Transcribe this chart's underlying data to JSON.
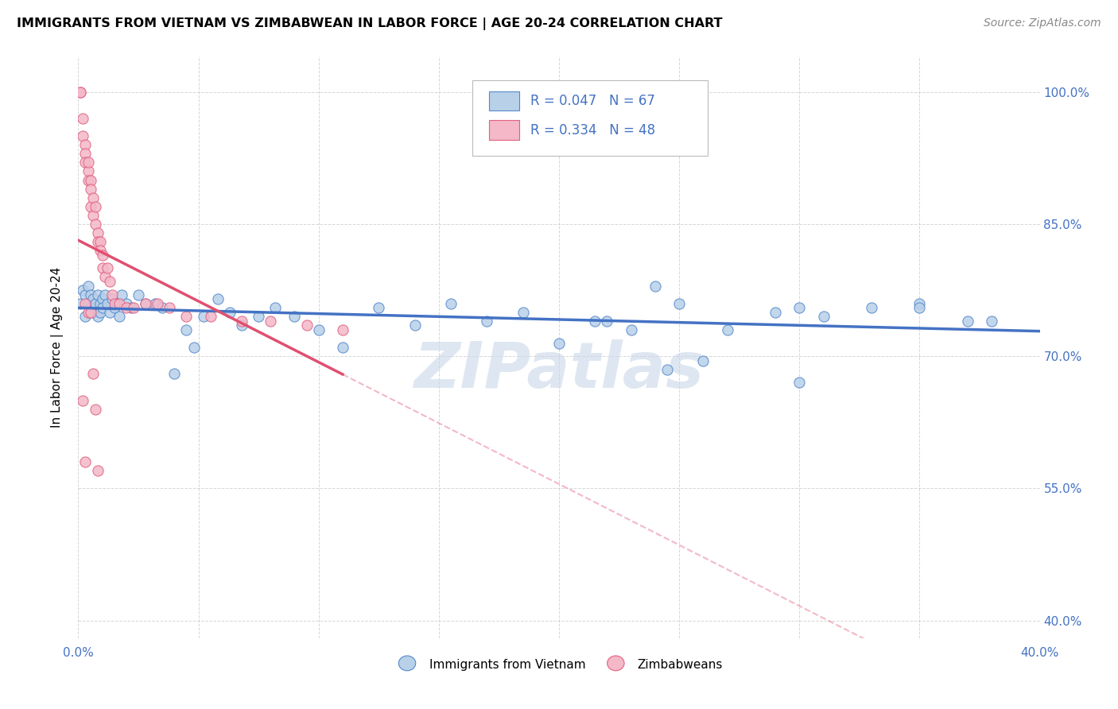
{
  "title": "IMMIGRANTS FROM VIETNAM VS ZIMBABWEAN IN LABOR FORCE | AGE 20-24 CORRELATION CHART",
  "source": "Source: ZipAtlas.com",
  "ylabel": "In Labor Force | Age 20-24",
  "xlim": [
    0.0,
    0.4
  ],
  "ylim": [
    0.38,
    1.04
  ],
  "xtick_positions": [
    0.0,
    0.05,
    0.1,
    0.15,
    0.2,
    0.25,
    0.3,
    0.35,
    0.4
  ],
  "ytick_positions": [
    0.4,
    0.55,
    0.7,
    0.85,
    1.0
  ],
  "ytick_labels": [
    "40.0%",
    "55.0%",
    "70.0%",
    "85.0%",
    "100.0%"
  ],
  "color_vietnam_fill": "#b8d0e8",
  "color_vietnam_edge": "#5588cc",
  "color_zimbabwe_fill": "#f4b8c8",
  "color_zimbabwe_edge": "#e06080",
  "color_trend_vietnam": "#4472c4",
  "color_trend_zimbabwe": "#e05070",
  "color_text_blue": "#4472c4",
  "color_grid": "#cccccc",
  "background_color": "#ffffff",
  "watermark": "ZIPatlas",
  "legend_vietnam_label": "Immigrants from Vietnam",
  "legend_zimbabwe_label": "Zimbabweans",
  "vietnam_x": [
    0.001,
    0.002,
    0.003,
    0.003,
    0.004,
    0.004,
    0.005,
    0.005,
    0.006,
    0.006,
    0.007,
    0.007,
    0.008,
    0.008,
    0.009,
    0.009,
    0.01,
    0.01,
    0.011,
    0.012,
    0.013,
    0.014,
    0.015,
    0.016,
    0.017,
    0.018,
    0.02,
    0.022,
    0.025,
    0.028,
    0.032,
    0.035,
    0.04,
    0.045,
    0.048,
    0.052,
    0.058,
    0.063,
    0.068,
    0.075,
    0.082,
    0.09,
    0.1,
    0.11,
    0.125,
    0.14,
    0.155,
    0.17,
    0.185,
    0.2,
    0.215,
    0.23,
    0.25,
    0.27,
    0.29,
    0.31,
    0.33,
    0.35,
    0.37,
    0.22,
    0.245,
    0.3,
    0.38,
    0.24,
    0.35,
    0.3,
    0.26
  ],
  "vietnam_y": [
    0.76,
    0.775,
    0.77,
    0.745,
    0.76,
    0.78,
    0.755,
    0.77,
    0.75,
    0.765,
    0.755,
    0.76,
    0.745,
    0.77,
    0.76,
    0.75,
    0.765,
    0.755,
    0.77,
    0.76,
    0.75,
    0.765,
    0.755,
    0.76,
    0.745,
    0.77,
    0.76,
    0.755,
    0.77,
    0.76,
    0.76,
    0.755,
    0.68,
    0.73,
    0.71,
    0.745,
    0.765,
    0.75,
    0.735,
    0.745,
    0.755,
    0.745,
    0.73,
    0.71,
    0.755,
    0.735,
    0.76,
    0.74,
    0.75,
    0.715,
    0.74,
    0.73,
    0.76,
    0.73,
    0.75,
    0.745,
    0.755,
    0.76,
    0.74,
    0.74,
    0.685,
    0.755,
    0.74,
    0.78,
    0.755,
    0.67,
    0.695
  ],
  "zimbabwe_x": [
    0.001,
    0.001,
    0.002,
    0.002,
    0.003,
    0.003,
    0.003,
    0.004,
    0.004,
    0.004,
    0.005,
    0.005,
    0.005,
    0.006,
    0.006,
    0.007,
    0.007,
    0.008,
    0.008,
    0.009,
    0.009,
    0.01,
    0.01,
    0.011,
    0.012,
    0.013,
    0.014,
    0.015,
    0.017,
    0.02,
    0.023,
    0.028,
    0.033,
    0.038,
    0.045,
    0.055,
    0.068,
    0.08,
    0.095,
    0.11,
    0.003,
    0.004,
    0.005,
    0.002,
    0.006,
    0.007,
    0.003,
    0.008
  ],
  "zimbabwe_y": [
    1.0,
    1.0,
    0.97,
    0.95,
    0.94,
    0.93,
    0.92,
    0.91,
    0.9,
    0.92,
    0.9,
    0.89,
    0.87,
    0.88,
    0.86,
    0.87,
    0.85,
    0.84,
    0.83,
    0.83,
    0.82,
    0.815,
    0.8,
    0.79,
    0.8,
    0.785,
    0.77,
    0.76,
    0.76,
    0.755,
    0.755,
    0.76,
    0.76,
    0.755,
    0.745,
    0.745,
    0.74,
    0.74,
    0.735,
    0.73,
    0.76,
    0.75,
    0.75,
    0.65,
    0.68,
    0.64,
    0.58,
    0.57
  ]
}
